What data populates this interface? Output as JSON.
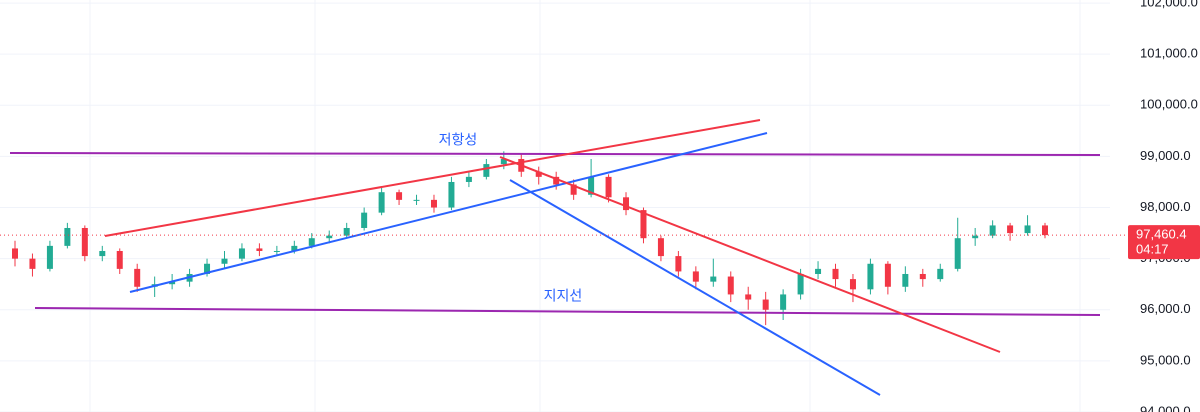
{
  "chart_data": {
    "type": "candlestick",
    "ylim": [
      94000,
      102060
    ],
    "yticks": [
      {
        "value": 94000,
        "label": "94,000.0"
      },
      {
        "value": 95000,
        "label": "95,000.0"
      },
      {
        "value": 96000,
        "label": "96,000.0"
      },
      {
        "value": 97000,
        "label": "97,000.0"
      },
      {
        "value": 98000,
        "label": "98,000.0"
      },
      {
        "value": 99000,
        "label": "99,000.0"
      },
      {
        "value": 100000,
        "label": "100,000.0"
      },
      {
        "value": 101000,
        "label": "101,000.0"
      },
      {
        "value": 102000,
        "label": "102,000.0"
      }
    ],
    "grid": true,
    "up_color": "#22ab94",
    "down_color": "#f23645",
    "open": [
      97200,
      97000,
      96800,
      97250,
      97600,
      97050,
      97150,
      96800,
      96450,
      96500,
      96550,
      96700,
      96900,
      97000,
      97200,
      97150,
      97150,
      97250,
      97400,
      97450,
      97600,
      97900,
      98300,
      98150,
      98150,
      98000,
      98500,
      98600,
      98850,
      98950,
      98700,
      98600,
      98450,
      98250,
      98600,
      98200,
      97950,
      97400,
      97050,
      96750,
      96550,
      96650,
      96300,
      96200,
      96000,
      96300,
      96700,
      96800,
      96600,
      96400,
      96900,
      96450,
      96700,
      96600,
      96800,
      97400,
      97450,
      97650,
      97500,
      97650
    ],
    "high": [
      97350,
      97100,
      97350,
      97700,
      97650,
      97250,
      97200,
      96900,
      96650,
      96700,
      96800,
      97000,
      97150,
      97300,
      97300,
      97250,
      97350,
      97500,
      97550,
      97700,
      98000,
      98400,
      98350,
      98250,
      98250,
      98600,
      98700,
      98950,
      99100,
      99050,
      98800,
      98700,
      98550,
      98950,
      98650,
      98300,
      98000,
      97450,
      97150,
      96850,
      97000,
      96750,
      96450,
      96350,
      96400,
      96800,
      96950,
      96900,
      96700,
      97000,
      96950,
      96850,
      96800,
      96900,
      97800,
      97600,
      97750,
      97700,
      97850,
      97700
    ],
    "low": [
      96850,
      96650,
      96750,
      97200,
      96950,
      96950,
      96700,
      96350,
      96250,
      96400,
      96450,
      96650,
      96800,
      96950,
      97050,
      97050,
      97100,
      97200,
      97300,
      97400,
      97550,
      97850,
      98050,
      98050,
      97900,
      97950,
      98400,
      98550,
      98750,
      98600,
      98450,
      98350,
      98150,
      98200,
      98100,
      97850,
      97300,
      96950,
      96650,
      96400,
      96450,
      96150,
      96000,
      95700,
      95800,
      96200,
      96600,
      96450,
      96150,
      96300,
      96300,
      96350,
      96450,
      96550,
      96750,
      97250,
      97400,
      97350,
      97450,
      97400
    ],
    "close": [
      97000,
      96800,
      97250,
      97600,
      97050,
      97150,
      96800,
      96450,
      96500,
      96550,
      96700,
      96900,
      97000,
      97200,
      97150,
      97150,
      97250,
      97400,
      97450,
      97600,
      97900,
      98300,
      98150,
      98150,
      98000,
      98500,
      98600,
      98850,
      98950,
      98700,
      98600,
      98450,
      98250,
      98600,
      98200,
      97950,
      97400,
      97050,
      96750,
      96550,
      96650,
      96300,
      96200,
      96000,
      96300,
      96700,
      96800,
      96600,
      96400,
      96900,
      96450,
      96700,
      96600,
      96800,
      97400,
      97450,
      97650,
      97500,
      97650,
      97460.4
    ],
    "last_price": {
      "value": 97460.4,
      "label": "97,460.4"
    },
    "last_price_color": "#f23645",
    "countdown": "04:17",
    "annotations": [
      "저항성",
      "지지선"
    ]
  }
}
